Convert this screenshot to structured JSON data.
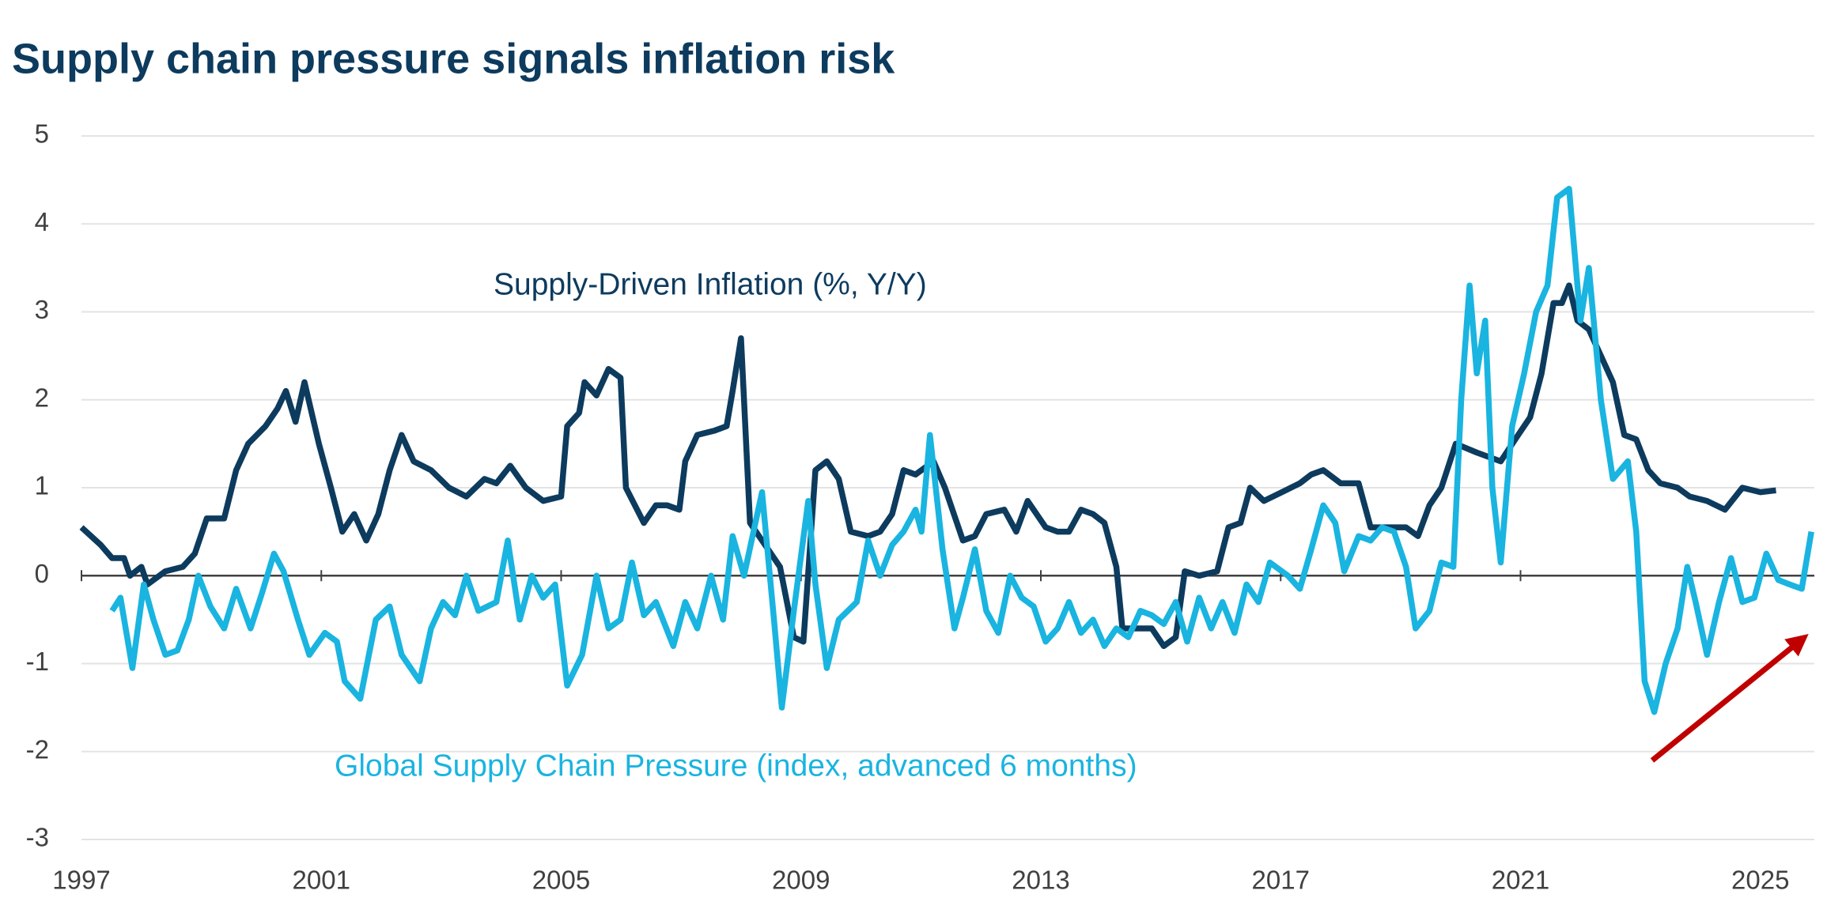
{
  "chart_data": {
    "type": "line",
    "title": "Supply chain pressure signals inflation risk",
    "annotations": [
      "Supply-Driven Inflation (%, Y/Y)",
      "Global Supply Chain Pressure (index, advanced 6 months)"
    ],
    "xlim": [
      1997,
      2025.9
    ],
    "xticks": [
      1997,
      2001,
      2005,
      2009,
      2013,
      2017,
      2021,
      2025
    ],
    "ylim": [
      -3,
      5
    ],
    "yticks": [
      -3,
      -2,
      -1,
      0,
      1,
      2,
      3,
      4,
      5
    ],
    "grid": true,
    "series": [
      {
        "name": "Supply-Driven Inflation (%, Y/Y)",
        "color": "#0d3b5e",
        "x": [
          1997.0,
          1997.32,
          1997.51,
          1997.71,
          1997.81,
          1998.0,
          1998.1,
          1998.4,
          1998.69,
          1998.89,
          1999.09,
          1999.38,
          1999.58,
          1999.78,
          2000.07,
          2000.27,
          2000.41,
          2000.57,
          2000.72,
          2000.96,
          2001.16,
          2001.35,
          2001.55,
          2001.75,
          2001.95,
          2002.14,
          2002.34,
          2002.54,
          2002.83,
          2003.13,
          2003.42,
          2003.72,
          2003.92,
          2004.15,
          2004.41,
          2004.7,
          2005.0,
          2005.1,
          2005.3,
          2005.39,
          2005.59,
          2005.79,
          2005.99,
          2006.08,
          2006.38,
          2006.58,
          2006.77,
          2006.97,
          2007.07,
          2007.27,
          2007.56,
          2007.76,
          2007.86,
          2008.0,
          2008.15,
          2008.45,
          2008.65,
          2008.88,
          2009.04,
          2009.24,
          2009.43,
          2009.63,
          2009.83,
          2010.12,
          2010.32,
          2010.52,
          2010.71,
          2010.91,
          2011.21,
          2011.4,
          2011.7,
          2011.9,
          2012.09,
          2012.39,
          2012.59,
          2012.78,
          2013.08,
          2013.28,
          2013.47,
          2013.67,
          2013.87,
          2014.06,
          2014.26,
          2014.36,
          2014.66,
          2014.85,
          2015.05,
          2015.25,
          2015.4,
          2015.64,
          2015.94,
          2016.13,
          2016.33,
          2016.49,
          2016.72,
          2017.02,
          2017.32,
          2017.51,
          2017.71,
          2018.0,
          2018.3,
          2018.5,
          2018.79,
          2019.09,
          2019.29,
          2019.48,
          2019.68,
          2019.92,
          2020.27,
          2020.67,
          2020.96,
          2021.16,
          2021.35,
          2021.55,
          2021.69,
          2021.81,
          2021.95,
          2022.14,
          2022.34,
          2022.54,
          2022.73,
          2022.93,
          2023.13,
          2023.33,
          2023.62,
          2023.82,
          2024.11,
          2024.41,
          2024.7,
          2025.0,
          2025.26
        ],
        "values": [
          0.55,
          0.35,
          0.2,
          0.2,
          0.0,
          0.1,
          -0.1,
          0.05,
          0.1,
          0.25,
          0.65,
          0.65,
          1.2,
          1.5,
          1.7,
          1.9,
          2.1,
          1.75,
          2.2,
          1.5,
          1.0,
          0.5,
          0.7,
          0.4,
          0.7,
          1.2,
          1.6,
          1.3,
          1.2,
          1.0,
          0.9,
          1.1,
          1.05,
          1.25,
          1.0,
          0.85,
          0.9,
          1.7,
          1.85,
          2.2,
          2.05,
          2.35,
          2.25,
          1.0,
          0.6,
          0.8,
          0.8,
          0.75,
          1.3,
          1.6,
          1.65,
          1.7,
          2.1,
          2.7,
          0.6,
          0.3,
          0.1,
          -0.7,
          -0.75,
          1.2,
          1.3,
          1.1,
          0.5,
          0.45,
          0.5,
          0.7,
          1.2,
          1.15,
          1.3,
          1.0,
          0.4,
          0.45,
          0.7,
          0.75,
          0.5,
          0.85,
          0.55,
          0.5,
          0.5,
          0.75,
          0.7,
          0.6,
          0.1,
          -0.6,
          -0.6,
          -0.6,
          -0.8,
          -0.7,
          0.05,
          0.0,
          0.05,
          0.55,
          0.6,
          1.0,
          0.85,
          0.95,
          1.05,
          1.15,
          1.2,
          1.05,
          1.05,
          0.55,
          0.55,
          0.55,
          0.45,
          0.8,
          1.0,
          1.5,
          1.4,
          1.3,
          1.6,
          1.8,
          2.3,
          3.1,
          3.1,
          3.3,
          2.9,
          2.8,
          2.5,
          2.2,
          1.6,
          1.55,
          1.2,
          1.05,
          1.0,
          0.9,
          0.85,
          0.75,
          1.0,
          0.95,
          0.97
        ]
      },
      {
        "name": "Global Supply Chain Pressure (index, advanced 6 months)",
        "color": "#1ab4e0",
        "x": [
          1997.51,
          1997.65,
          1997.85,
          1998.04,
          1998.2,
          1998.4,
          1998.6,
          1998.79,
          1998.95,
          1999.15,
          1999.38,
          1999.58,
          1999.82,
          2000.01,
          2000.21,
          2000.37,
          2000.61,
          2000.8,
          2001.06,
          2001.26,
          2001.39,
          2001.65,
          2001.91,
          2002.14,
          2002.34,
          2002.64,
          2002.83,
          2003.03,
          2003.23,
          2003.42,
          2003.62,
          2003.92,
          2004.11,
          2004.31,
          2004.51,
          2004.7,
          2004.9,
          2005.1,
          2005.35,
          2005.59,
          2005.79,
          2005.99,
          2006.18,
          2006.38,
          2006.58,
          2006.87,
          2007.07,
          2007.27,
          2007.5,
          2007.7,
          2007.86,
          2008.05,
          2008.35,
          2008.55,
          2008.68,
          2008.88,
          2009.12,
          2009.24,
          2009.43,
          2009.63,
          2009.93,
          2010.12,
          2010.32,
          2010.52,
          2010.71,
          2010.91,
          2011.01,
          2011.15,
          2011.36,
          2011.56,
          2011.7,
          2011.9,
          2012.09,
          2012.29,
          2012.49,
          2012.68,
          2012.88,
          2013.08,
          2013.28,
          2013.47,
          2013.67,
          2013.87,
          2014.06,
          2014.26,
          2014.46,
          2014.66,
          2014.85,
          2015.05,
          2015.25,
          2015.44,
          2015.64,
          2015.84,
          2016.03,
          2016.23,
          2016.43,
          2016.63,
          2016.82,
          2017.12,
          2017.32,
          2017.51,
          2017.71,
          2017.91,
          2018.06,
          2018.3,
          2018.5,
          2018.69,
          2018.89,
          2019.09,
          2019.25,
          2019.48,
          2019.68,
          2019.88,
          2020.01,
          2020.15,
          2020.27,
          2020.41,
          2020.53,
          2020.67,
          2020.86,
          2021.06,
          2021.26,
          2021.45,
          2021.61,
          2021.81,
          2022.0,
          2022.14,
          2022.34,
          2022.54,
          2022.79,
          2022.93,
          2023.07,
          2023.23,
          2023.42,
          2023.62,
          2023.78,
          2023.92,
          2024.11,
          2024.31,
          2024.51,
          2024.7,
          2024.9,
          2025.1,
          2025.3,
          2025.49,
          2025.69,
          2025.85
        ],
        "values": [
          -0.4,
          -0.25,
          -1.05,
          -0.1,
          -0.5,
          -0.9,
          -0.85,
          -0.5,
          0.0,
          -0.35,
          -0.6,
          -0.15,
          -0.6,
          -0.2,
          0.25,
          0.05,
          -0.5,
          -0.9,
          -0.65,
          -0.75,
          -1.2,
          -1.4,
          -0.5,
          -0.35,
          -0.9,
          -1.2,
          -0.6,
          -0.3,
          -0.45,
          0.0,
          -0.4,
          -0.3,
          0.4,
          -0.5,
          0.0,
          -0.25,
          -0.1,
          -1.25,
          -0.9,
          0.0,
          -0.6,
          -0.5,
          0.15,
          -0.45,
          -0.3,
          -0.8,
          -0.3,
          -0.6,
          0.0,
          -0.5,
          0.45,
          0.0,
          0.95,
          -0.5,
          -1.5,
          -0.4,
          0.85,
          -0.1,
          -1.05,
          -0.5,
          -0.3,
          0.4,
          0.0,
          0.35,
          0.5,
          0.75,
          0.5,
          1.6,
          0.3,
          -0.6,
          -0.25,
          0.3,
          -0.4,
          -0.65,
          0.0,
          -0.25,
          -0.35,
          -0.75,
          -0.6,
          -0.3,
          -0.65,
          -0.5,
          -0.8,
          -0.6,
          -0.7,
          -0.4,
          -0.45,
          -0.55,
          -0.3,
          -0.75,
          -0.25,
          -0.6,
          -0.3,
          -0.65,
          -0.1,
          -0.3,
          0.15,
          0.0,
          -0.15,
          0.3,
          0.8,
          0.6,
          0.05,
          0.45,
          0.4,
          0.55,
          0.5,
          0.1,
          -0.6,
          -0.4,
          0.15,
          0.1,
          2.0,
          3.3,
          2.3,
          2.9,
          1.0,
          0.15,
          1.7,
          2.3,
          3.0,
          3.3,
          4.3,
          4.4,
          2.9,
          3.5,
          2.0,
          1.1,
          1.3,
          0.5,
          -1.2,
          -1.55,
          -1.0,
          -0.6,
          0.1,
          -0.3,
          -0.9,
          -0.3,
          0.2,
          -0.3,
          -0.25,
          0.25,
          -0.05,
          -0.1,
          -0.15,
          0.5
        ]
      }
    ]
  }
}
